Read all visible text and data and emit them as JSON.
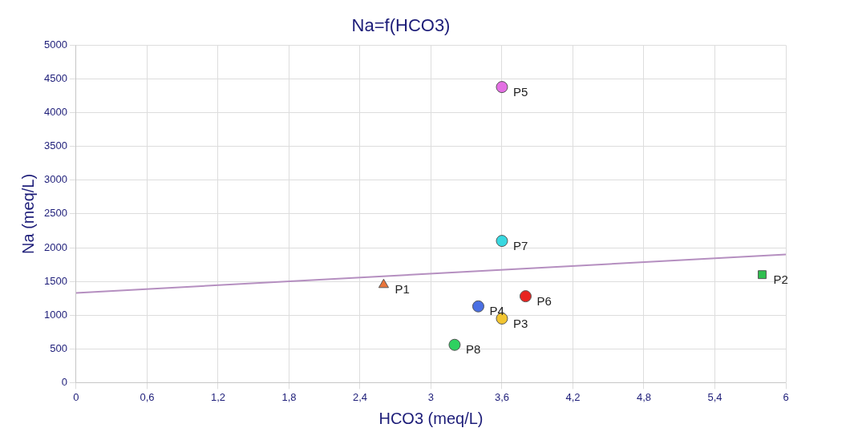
{
  "chart_data": {
    "type": "scatter",
    "title": "Na=f(HCO3)",
    "xlabel": "HCO3 (meq/L)",
    "ylabel": "Na (meq/L)",
    "xlim": [
      0,
      6
    ],
    "xticks": [
      0,
      {
        "value": 0.6,
        "label": "0,6"
      },
      {
        "value": 1.2,
        "label": "1,2"
      },
      {
        "value": 1.8,
        "label": "1,8"
      },
      {
        "value": 2.4,
        "label": "2,4"
      },
      3,
      {
        "value": 3.6,
        "label": "3,6"
      },
      {
        "value": 4.2,
        "label": "4,2"
      },
      {
        "value": 4.8,
        "label": "4,8"
      },
      {
        "value": 5.4,
        "label": "5,4"
      },
      6
    ],
    "ylim": [
      0,
      5000
    ],
    "yticks": [
      0,
      500,
      1000,
      1500,
      2000,
      2500,
      3000,
      3500,
      4000,
      4500,
      5000
    ],
    "grid": true,
    "legend": false,
    "series": [
      {
        "name": "P1",
        "color": "#e8743b",
        "marker": "triangle",
        "x": [
          2.6
        ],
        "values": [
          1450
        ]
      },
      {
        "name": "P2",
        "color": "#2fbf4f",
        "marker": "square",
        "x": [
          5.8
        ],
        "values": [
          1600
        ]
      },
      {
        "name": "P3",
        "color": "#f2c531",
        "marker": "circle",
        "x": [
          3.6
        ],
        "values": [
          950
        ]
      },
      {
        "name": "P4",
        "color": "#4a6fe3",
        "marker": "circle",
        "x": [
          3.4
        ],
        "values": [
          1130
        ]
      },
      {
        "name": "P5",
        "color": "#e36fe3",
        "marker": "circle",
        "x": [
          3.6
        ],
        "values": [
          4380
        ]
      },
      {
        "name": "P6",
        "color": "#e8231f",
        "marker": "circle",
        "x": [
          3.8
        ],
        "values": [
          1280
        ]
      },
      {
        "name": "P7",
        "color": "#38d8e0",
        "marker": "circle",
        "x": [
          3.6
        ],
        "values": [
          2100
        ]
      },
      {
        "name": "P8",
        "color": "#2ed160",
        "marker": "circle",
        "x": [
          3.2
        ],
        "values": [
          560
        ]
      },
      {
        "type": "line",
        "color": "#b58fc0",
        "marker": "none",
        "x": [
          0,
          6
        ],
        "values": [
          1330,
          1900
        ]
      }
    ]
  }
}
